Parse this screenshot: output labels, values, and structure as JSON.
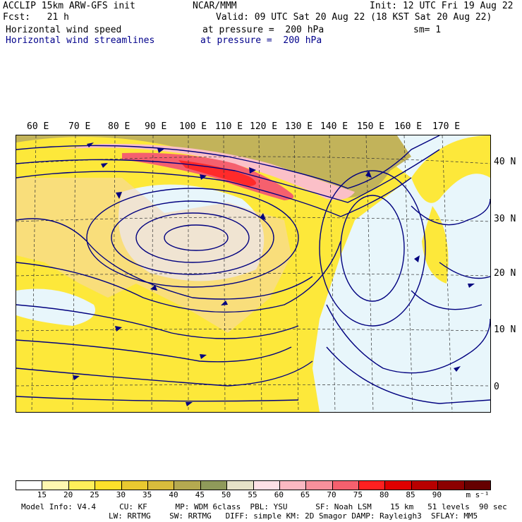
{
  "header": {
    "line1_left": "ACCLIP 15km ARW-GFS init",
    "line1_center": "NCAR/MMM",
    "line1_right": "Init: 12 UTC Fri 19 Aug 22",
    "line2_left": "Fcst:   21 h",
    "line2_right": "Valid: 09 UTC Sat 20 Aug 22 (18 KST Sat 20 Aug 22)",
    "field1_name": "Horizontal wind speed",
    "field1_level": "at pressure =  200 hPa",
    "field1_sm": "sm= 1",
    "field2_name": "Horizontal wind streamlines",
    "field2_level": "at pressure =  200 hPa"
  },
  "longitude_labels": [
    "60 E",
    "70 E",
    "80 E",
    "90 E",
    "100 E",
    "110 E",
    "120 E",
    "130 E",
    "140 E",
    "150 E",
    "160 E",
    "170 E"
  ],
  "latitude_labels": [
    "40 N",
    "30 N",
    "20 N",
    "10 N",
    "0"
  ],
  "colorbar": {
    "labels": [
      "15",
      "20",
      "25",
      "30",
      "35",
      "40",
      "45",
      "50",
      "55",
      "60",
      "65",
      "70",
      "75",
      "80",
      "85",
      "90"
    ],
    "unit": "m s⁻¹",
    "colors": [
      "#ffffff",
      "#fff7b0",
      "#ffef5a",
      "#fde02a",
      "#e9c930",
      "#d8bb3c",
      "#b5a950",
      "#8f9a5a",
      "#e6e2c8",
      "#fde0e6",
      "#fbb8c2",
      "#f7909c",
      "#f5606e",
      "#ff2020",
      "#e00000",
      "#b80000",
      "#8c0000",
      "#650000"
    ]
  },
  "footer": {
    "line1": "Model Info: V4.4     CU: KF      MP: WDM 6class  PBL: YSU      SF: Noah LSM    15 km   51 levels  90 sec",
    "line2": "LW: RRTMG    SW: RRTMG   DIFF: simple KM: 2D Smagor DAMP: Rayleigh3  SFLAY: MM5"
  },
  "colors": {
    "streamline": "#00007f",
    "land": "#f5d6b0",
    "ocean_calm": "#e8f6fb"
  }
}
